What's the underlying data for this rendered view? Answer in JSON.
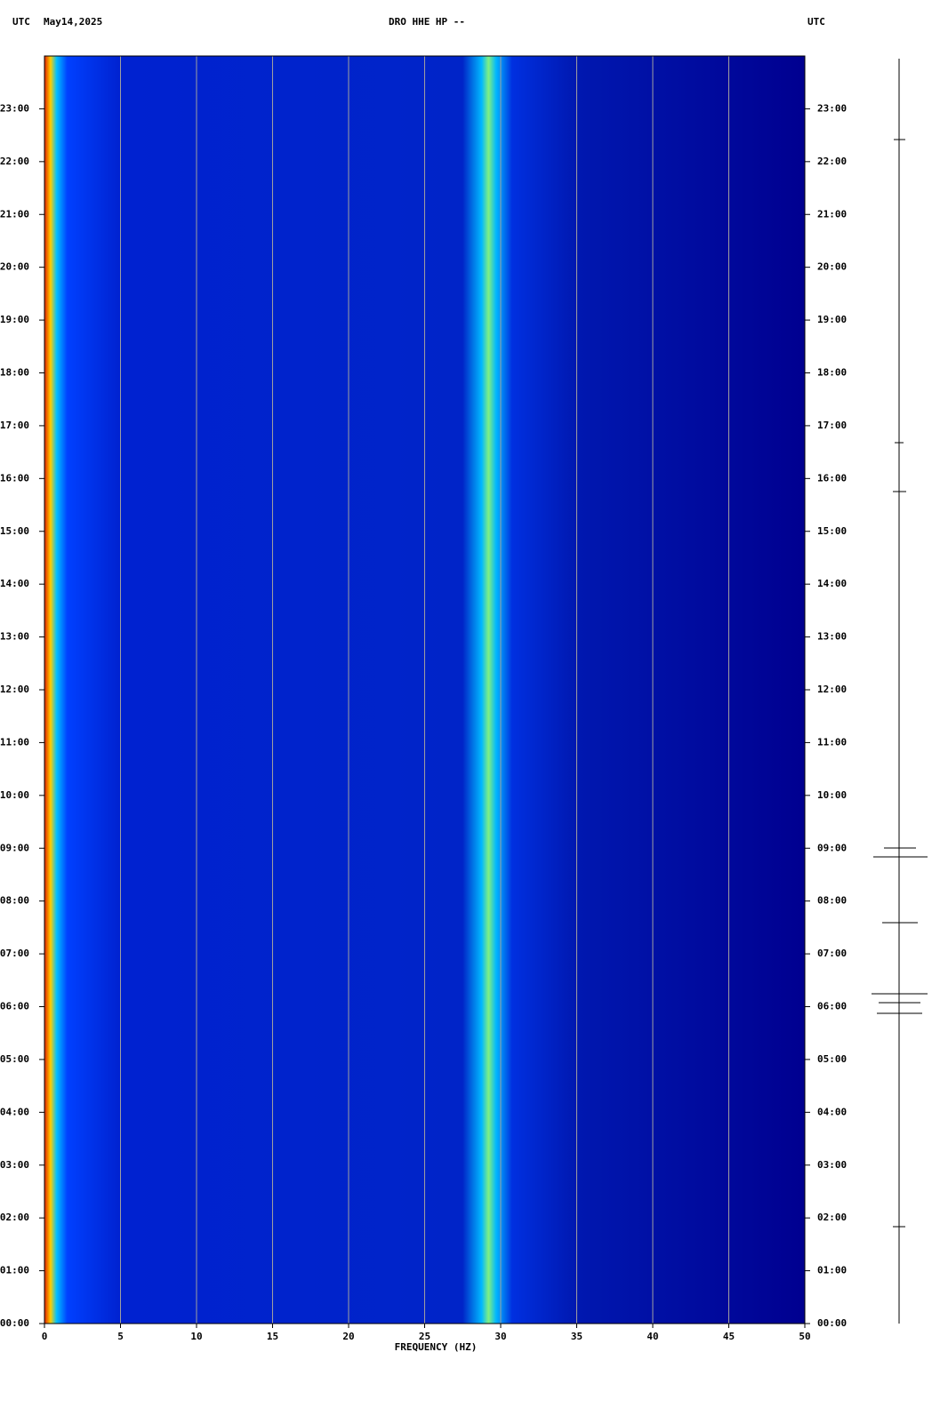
{
  "chart_data": {
    "type": "spectrogram",
    "header_left": "UTC",
    "date": "May14,2025",
    "title": "DRO HHE HP --",
    "header_right": "UTC",
    "x_label": "FREQUENCY (HZ)",
    "xlim": [
      0,
      50
    ],
    "xticks": [
      0,
      5,
      10,
      15,
      20,
      25,
      30,
      35,
      40,
      45,
      50
    ],
    "ylim": [
      0,
      24
    ],
    "yticks": [
      {
        "value": 0,
        "label": "00:00"
      },
      {
        "value": 1,
        "label": "01:00"
      },
      {
        "value": 2,
        "label": "02:00"
      },
      {
        "value": 3,
        "label": "03:00"
      },
      {
        "value": 4,
        "label": "04:00"
      },
      {
        "value": 5,
        "label": "05:00"
      },
      {
        "value": 6,
        "label": "06:00"
      },
      {
        "value": 7,
        "label": "07:00"
      },
      {
        "value": 8,
        "label": "08:00"
      },
      {
        "value": 9,
        "label": "09:00"
      },
      {
        "value": 10,
        "label": "10:00"
      },
      {
        "value": 11,
        "label": "11:00"
      },
      {
        "value": 12,
        "label": "12:00"
      },
      {
        "value": 13,
        "label": "13:00"
      },
      {
        "value": 14,
        "label": "14:00"
      },
      {
        "value": 15,
        "label": "15:00"
      },
      {
        "value": 16,
        "label": "16:00"
      },
      {
        "value": 17,
        "label": "17:00"
      },
      {
        "value": 18,
        "label": "18:00"
      },
      {
        "value": 19,
        "label": "19:00"
      },
      {
        "value": 20,
        "label": "20:00"
      },
      {
        "value": 21,
        "label": "21:00"
      },
      {
        "value": 22,
        "label": "22:00"
      },
      {
        "value": 23,
        "label": "23:00"
      }
    ],
    "grid": true,
    "grid_color": "#a0a0a0"
  }
}
